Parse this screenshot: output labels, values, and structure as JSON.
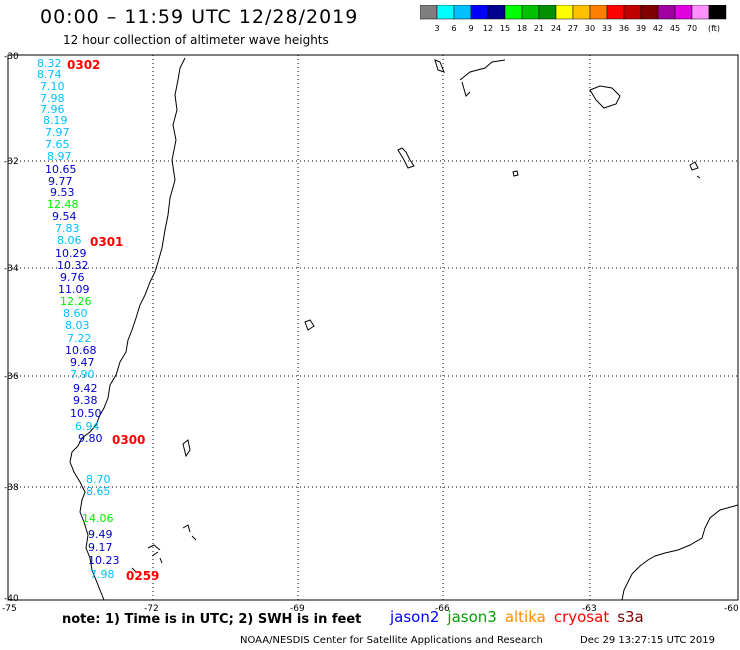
{
  "header": {
    "title": "00:00 – 11:59 UTC 12/28/2019",
    "subtitle": "12 hour collection of altimeter wave heights"
  },
  "legend": {
    "unit": "(ft)",
    "bins": [
      {
        "color": "#7f7f7f",
        "label": ""
      },
      {
        "color": "#00ffff",
        "label": "3"
      },
      {
        "color": "#00c0ff",
        "label": "6"
      },
      {
        "color": "#0000ff",
        "label": "9"
      },
      {
        "color": "#000090",
        "label": "12"
      },
      {
        "color": "#00ff00",
        "label": "15"
      },
      {
        "color": "#00c000",
        "label": "18"
      },
      {
        "color": "#009000",
        "label": "21"
      },
      {
        "color": "#ffff00",
        "label": "24"
      },
      {
        "color": "#ffc000",
        "label": "27"
      },
      {
        "color": "#ff8000",
        "label": "30"
      },
      {
        "color": "#ff0000",
        "label": "33"
      },
      {
        "color": "#c00000",
        "label": "36"
      },
      {
        "color": "#800000",
        "label": "39"
      },
      {
        "color": "#a000a0",
        "label": "42"
      },
      {
        "color": "#e000e0",
        "label": "45"
      },
      {
        "color": "#ff90ff",
        "label": "70"
      },
      {
        "color": "#000000",
        "label": ""
      }
    ]
  },
  "axes": {
    "lat_labels": [
      "-30",
      "-32",
      "-34",
      "-36",
      "-38",
      "-40"
    ],
    "lon_labels": [
      "-75",
      "-72",
      "-69",
      "-66",
      "-63",
      "-60"
    ]
  },
  "observations": [
    {
      "v": "8.32",
      "c": "#00c0ff"
    },
    {
      "v": "8.74",
      "c": "#00c0ff"
    },
    {
      "v": "7.10",
      "c": "#00c0ff"
    },
    {
      "v": "7.98",
      "c": "#00c0ff"
    },
    {
      "v": "7.96",
      "c": "#00c0ff"
    },
    {
      "v": "8.19",
      "c": "#00c0ff"
    },
    {
      "v": "7.97",
      "c": "#00c0ff"
    },
    {
      "v": "7.65",
      "c": "#00c0ff"
    },
    {
      "v": "8.97",
      "c": "#00c0ff"
    },
    {
      "v": "10.65",
      "c": "#0000cc"
    },
    {
      "v": "9.77",
      "c": "#0000cc"
    },
    {
      "v": "9.53",
      "c": "#0000cc"
    },
    {
      "v": "12.48",
      "c": "#00ee00"
    },
    {
      "v": "9.54",
      "c": "#0000cc"
    },
    {
      "v": "7.83",
      "c": "#00c0ff"
    },
    {
      "v": "8.06",
      "c": "#00c0ff"
    },
    {
      "v": "10.29",
      "c": "#0000cc"
    },
    {
      "v": "10.32",
      "c": "#0000cc"
    },
    {
      "v": "9.76",
      "c": "#0000cc"
    },
    {
      "v": "11.09",
      "c": "#0000cc"
    },
    {
      "v": "12.26",
      "c": "#00ee00"
    },
    {
      "v": "8.60",
      "c": "#00c0ff"
    },
    {
      "v": "8.03",
      "c": "#00c0ff"
    },
    {
      "v": "7.22",
      "c": "#00c0ff"
    },
    {
      "v": "10.68",
      "c": "#0000cc"
    },
    {
      "v": "9.47",
      "c": "#0000cc"
    },
    {
      "v": "7.90",
      "c": "#00c0ff"
    },
    {
      "v": "9.42",
      "c": "#0000cc"
    },
    {
      "v": "9.38",
      "c": "#0000cc"
    },
    {
      "v": "10.50",
      "c": "#0000cc"
    },
    {
      "v": "6.94",
      "c": "#00c0ff"
    },
    {
      "v": "9.80",
      "c": "#0000cc"
    },
    {
      "v": "8.70",
      "c": "#00c0ff"
    },
    {
      "v": "8.65",
      "c": "#00c0ff"
    },
    {
      "v": "14.06",
      "c": "#00ee00"
    },
    {
      "v": "9.49",
      "c": "#0000cc"
    },
    {
      "v": "9.17",
      "c": "#0000cc"
    },
    {
      "v": "10.23",
      "c": "#0000cc"
    },
    {
      "v": "7.98",
      "c": "#00c0ff"
    }
  ],
  "time_labels": [
    "0302",
    "0301",
    "0300",
    "0259"
  ],
  "footer": {
    "note": "note:  1) Time is in UTC;  2) SWH is in feet",
    "satellites": [
      {
        "name": "jason2",
        "color": "#0000ff"
      },
      {
        "name": "jason3",
        "color": "#00a000"
      },
      {
        "name": "altika",
        "color": "#ff8c00"
      },
      {
        "name": "cryosat",
        "color": "#ff0000"
      },
      {
        "name": "s3a",
        "color": "#800000"
      }
    ],
    "credit": "NOAA/NESDIS Center for Satellite Applications and Research",
    "timestamp": "Dec 29 13:27:15 UTC 2019"
  }
}
